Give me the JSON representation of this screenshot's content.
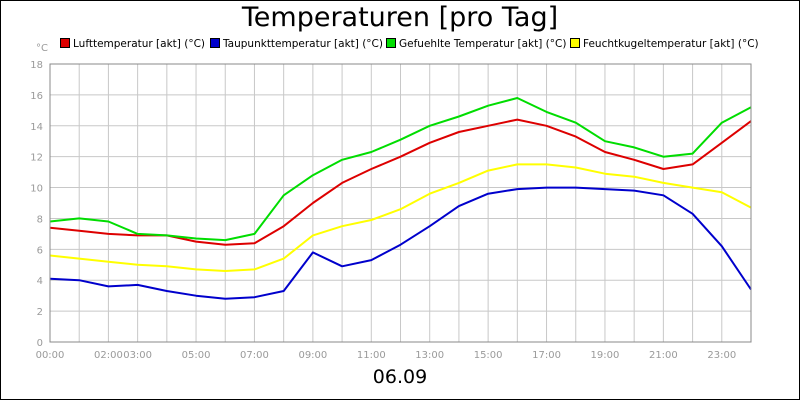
{
  "chart_data": {
    "type": "line",
    "title": "Temperaturen [pro Tag]",
    "footer_label": "06.09",
    "y_unit": "°C",
    "xlabel": "",
    "ylabel": "",
    "xlim": [
      "00:00",
      "24:00"
    ],
    "ylim": [
      0,
      18
    ],
    "grid": true,
    "legend_position": "top",
    "x_tick_labels": [
      "00:00",
      "02:00",
      "03:00",
      "05:00",
      "07:00",
      "09:00",
      "11:00",
      "13:00",
      "15:00",
      "17:00",
      "19:00",
      "21:00",
      "23:00"
    ],
    "y_tick_labels": [
      "0",
      "2",
      "4",
      "6",
      "8",
      "10",
      "12",
      "14",
      "16",
      "18"
    ],
    "x": [
      "00:00",
      "01:00",
      "02:00",
      "03:00",
      "04:00",
      "05:00",
      "06:00",
      "07:00",
      "08:00",
      "09:00",
      "10:00",
      "11:00",
      "12:00",
      "13:00",
      "14:00",
      "15:00",
      "16:00",
      "17:00",
      "18:00",
      "19:00",
      "20:00",
      "21:00",
      "22:00",
      "23:00",
      "24:00"
    ],
    "series": [
      {
        "name": "Lufttemperatur [akt] (°C)",
        "color": "#dd0000",
        "values": [
          7.4,
          7.2,
          7.0,
          6.9,
          6.9,
          6.5,
          6.3,
          6.4,
          7.5,
          9.0,
          10.3,
          11.2,
          12.0,
          12.9,
          13.6,
          14.0,
          14.4,
          14.0,
          13.3,
          12.3,
          11.8,
          11.2,
          11.5,
          12.9,
          14.3
        ]
      },
      {
        "name": "Taupunkttemperatur [akt] (°C)",
        "color": "#0000cc",
        "values": [
          4.1,
          4.0,
          3.6,
          3.7,
          3.3,
          3.0,
          2.8,
          2.9,
          3.3,
          5.8,
          4.9,
          5.3,
          6.3,
          7.5,
          8.8,
          9.6,
          9.9,
          10.0,
          10.0,
          9.9,
          9.8,
          9.5,
          8.3,
          6.2,
          3.4
        ]
      },
      {
        "name": "Gefuehlte Temperatur [akt] (°C)",
        "color": "#00dd00",
        "values": [
          7.8,
          8.0,
          7.8,
          7.0,
          6.9,
          6.7,
          6.6,
          7.0,
          9.5,
          10.8,
          11.8,
          12.3,
          13.1,
          14.0,
          14.6,
          15.3,
          15.8,
          14.9,
          14.2,
          13.0,
          12.6,
          12.0,
          12.2,
          14.2,
          15.2
        ]
      },
      {
        "name": "Feuchtkugeltemperatur [akt] (°C)",
        "color": "#ffff00",
        "values": [
          5.6,
          5.4,
          5.2,
          5.0,
          4.9,
          4.7,
          4.6,
          4.7,
          5.4,
          6.9,
          7.5,
          7.9,
          8.6,
          9.6,
          10.3,
          11.1,
          11.5,
          11.5,
          11.3,
          10.9,
          10.7,
          10.3,
          10.0,
          9.7,
          8.7
        ]
      }
    ]
  }
}
